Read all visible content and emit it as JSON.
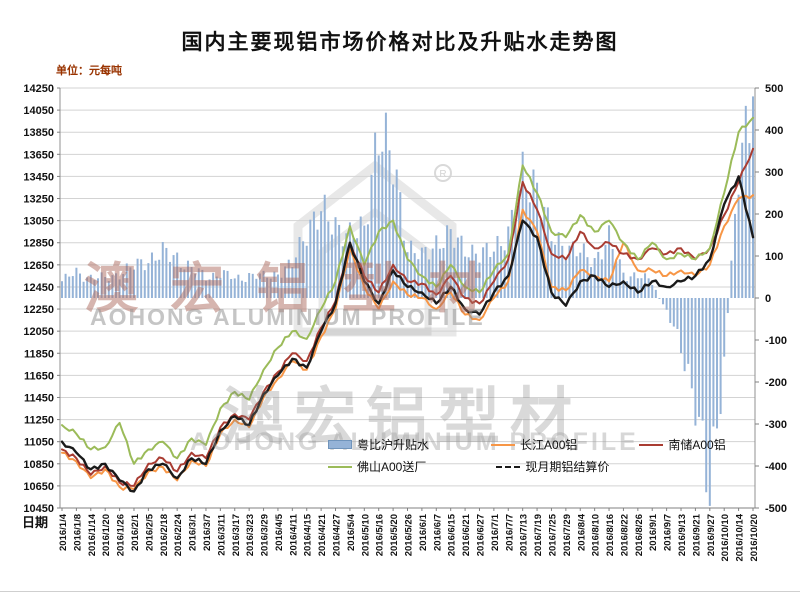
{
  "title": "国内主要现铝市场价格对比及升贴水走势图",
  "unit_label": "单位：元每吨",
  "x_axis_title": "日期",
  "watermark": {
    "cn": "澳宏铝型材",
    "en": "AOHONG ALUMINIUM PROFILE",
    "registered_mark": "R"
  },
  "legend": [
    {
      "key": "premium",
      "label": "粤比沪升贴水",
      "type": "bar",
      "color": "#95b3d7"
    },
    {
      "key": "changjiang",
      "label": "长江A00铝",
      "type": "line",
      "color": "#f79646"
    },
    {
      "key": "nanchu",
      "label": "南储A00铝",
      "type": "line",
      "color": "#a93c32"
    },
    {
      "key": "foshan",
      "label": "佛山A00送厂",
      "type": "line",
      "color": "#9bbb59"
    },
    {
      "key": "settle",
      "label": "现月期铝结算价",
      "type": "dashed-line",
      "color": "#1a1a1a"
    }
  ],
  "chart_data": {
    "type": "combo-bar-line",
    "grid": true,
    "legend_position": "bottom-inside",
    "left_axis": {
      "min": 10450,
      "max": 14250,
      "step": 200,
      "ticks": [
        14250,
        14050,
        13850,
        13650,
        13450,
        13250,
        13050,
        12850,
        12650,
        12450,
        12250,
        12050,
        11850,
        11650,
        11450,
        11250,
        11050,
        10850,
        10650,
        10450
      ]
    },
    "right_axis": {
      "min": -500,
      "max": 500,
      "step": 100,
      "ticks": [
        500,
        400,
        300,
        200,
        100,
        0,
        -100,
        -200,
        -300,
        -400,
        -500
      ]
    },
    "x": [
      "2016/1/4",
      "2016/1/8",
      "2016/1/14",
      "2016/1/20",
      "2016/1/26",
      "2016/2/1",
      "2016/2/5",
      "2016/2/18",
      "2016/2/24",
      "2016/3/1",
      "2016/3/7",
      "2016/3/11",
      "2016/3/17",
      "2016/3/23",
      "2016/3/29",
      "2016/4/5",
      "2016/4/11",
      "2016/4/15",
      "2016/4/21",
      "2016/4/27",
      "2016/5/4",
      "2016/5/10",
      "2016/5/16",
      "2016/5/20",
      "2016/5/26",
      "2016/6/1",
      "2016/6/7",
      "2016/6/15",
      "2016/6/21",
      "2016/6/27",
      "2016/7/1",
      "2016/7/7",
      "2016/7/13",
      "2016/7/19",
      "2016/7/25",
      "2016/7/29",
      "2016/8/4",
      "2016/8/10",
      "2016/8/16",
      "2016/8/22",
      "2016/8/26",
      "2016/9/1",
      "2016/9/7",
      "2016/9/13",
      "2016/9/21",
      "2016/9/27",
      "2016/10/10",
      "2016/10/14",
      "2016/10/20"
    ],
    "series": [
      {
        "name": "粤比沪升贴水",
        "key": "premium",
        "type": "bar",
        "axis": "right",
        "color": "#95b3d7",
        "values": [
          40,
          60,
          50,
          45,
          60,
          75,
          90,
          110,
          95,
          70,
          50,
          60,
          45,
          55,
          50,
          60,
          80,
          160,
          210,
          170,
          150,
          165,
          400,
          330,
          120,
          100,
          130,
          150,
          120,
          100,
          120,
          150,
          290,
          260,
          150,
          120,
          110,
          90,
          140,
          60,
          50,
          40,
          -30,
          -120,
          -250,
          -460,
          -150,
          300,
          480
        ]
      },
      {
        "name": "长江A00铝",
        "key": "changjiang",
        "type": "line",
        "axis": "left",
        "color": "#f79646",
        "values": [
          10950,
          10870,
          10720,
          10800,
          10640,
          10620,
          10780,
          10820,
          10700,
          10880,
          10830,
          11120,
          11250,
          11180,
          11450,
          11620,
          11780,
          11700,
          12000,
          12250,
          12800,
          12450,
          12250,
          12500,
          12380,
          12350,
          12250,
          12400,
          12200,
          12150,
          12350,
          12500,
          13150,
          12950,
          12450,
          12420,
          12600,
          12550,
          12500,
          12850,
          12600,
          12600,
          12550,
          12600,
          12550,
          12650,
          13000,
          13250,
          13280
        ]
      },
      {
        "name": "南储A00铝",
        "key": "nanchu",
        "type": "line",
        "axis": "left",
        "color": "#a93c32",
        "values": [
          10980,
          10900,
          10750,
          10830,
          10680,
          10650,
          10850,
          10900,
          10780,
          10950,
          10900,
          11180,
          11300,
          11250,
          11500,
          11680,
          11850,
          11780,
          12080,
          12320,
          12850,
          12550,
          12400,
          12650,
          12500,
          12480,
          12380,
          12550,
          12350,
          12300,
          12500,
          12700,
          13400,
          13150,
          12750,
          12700,
          12950,
          12800,
          12850,
          12750,
          12700,
          12800,
          12750,
          12800,
          12700,
          12800,
          13100,
          13400,
          13700
        ]
      },
      {
        "name": "佛山A00送厂",
        "key": "foshan",
        "type": "line",
        "axis": "left",
        "color": "#9bbb59",
        "values": [
          11200,
          11120,
          10980,
          11000,
          11220,
          10850,
          10980,
          11050,
          10900,
          11080,
          11020,
          11350,
          11500,
          11430,
          11700,
          11900,
          12050,
          11980,
          12250,
          12500,
          13000,
          12650,
          12950,
          13050,
          12700,
          12550,
          12450,
          12650,
          12450,
          12400,
          12600,
          12750,
          13550,
          13300,
          12950,
          12900,
          13100,
          12950,
          13050,
          12850,
          12700,
          12850,
          12700,
          12750,
          12700,
          12800,
          13300,
          13850,
          13980
        ]
      },
      {
        "name": "现月期铝结算价",
        "key": "settle",
        "type": "line",
        "axis": "left",
        "color": "#1a1a1a",
        "values": [
          11050,
          10950,
          10800,
          10850,
          10700,
          10600,
          10800,
          10850,
          10720,
          10900,
          10850,
          11150,
          11280,
          11200,
          11480,
          11650,
          11800,
          11720,
          12050,
          12300,
          12850,
          12500,
          12300,
          12600,
          12450,
          12400,
          12300,
          12450,
          12250,
          12200,
          12400,
          12550,
          13050,
          12900,
          12400,
          12280,
          12500,
          12550,
          12450,
          12500,
          12400,
          12500,
          12450,
          12500,
          12550,
          12700,
          13200,
          13450,
          12900
        ]
      }
    ]
  }
}
